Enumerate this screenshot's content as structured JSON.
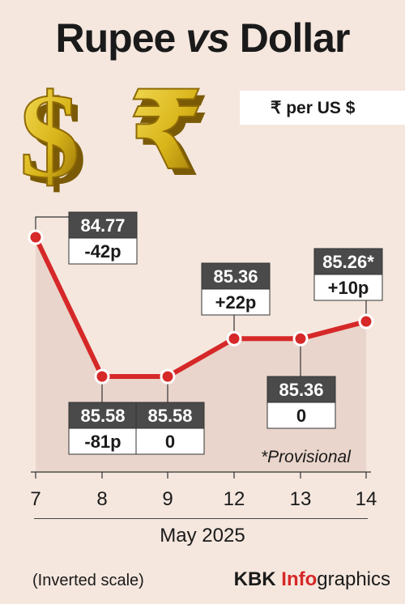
{
  "header": {
    "title_a": "Rupee ",
    "title_vs": "vs",
    "title_b": " Dollar",
    "unit_label": "₹ per US $"
  },
  "chart_data": {
    "type": "line",
    "categories": [
      "7",
      "8",
      "9",
      "12",
      "13",
      "14"
    ],
    "values": [
      84.77,
      85.58,
      85.58,
      85.36,
      85.36,
      85.26
    ],
    "value_labels": [
      "84.77",
      "85.58",
      "85.58",
      "85.36",
      "85.36",
      "85.26*"
    ],
    "change_labels": [
      "-42p",
      "-81p",
      "0",
      "+22p",
      "0",
      "+10p"
    ],
    "label_position": [
      "above",
      "below",
      "below",
      "above",
      "below",
      "above"
    ],
    "inverted_y": true,
    "ylim": [
      84.7,
      85.65
    ],
    "xlabel": "May 2025",
    "line_color": "#d62828",
    "grid": false
  },
  "footer": {
    "provisional_note": "*Provisional",
    "scale_note": "(Inverted scale)",
    "credit_a": "KBK ",
    "credit_b": "Info",
    "credit_c": "graphics"
  },
  "icons": [
    "dollar-sign-3d-icon",
    "rupee-sign-3d-icon"
  ]
}
